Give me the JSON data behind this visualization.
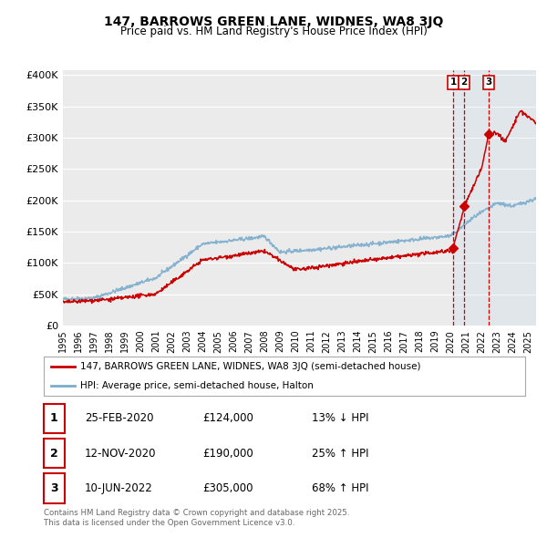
{
  "title": "147, BARROWS GREEN LANE, WIDNES, WA8 3JQ",
  "subtitle": "Price paid vs. HM Land Registry's House Price Index (HPI)",
  "legend_label_red": "147, BARROWS GREEN LANE, WIDNES, WA8 3JQ (semi-detached house)",
  "legend_label_blue": "HPI: Average price, semi-detached house, Halton",
  "ylim": [
    0,
    400000
  ],
  "yticks": [
    0,
    50000,
    100000,
    150000,
    200000,
    250000,
    300000,
    350000,
    400000
  ],
  "ytick_labels": [
    "£0",
    "£50K",
    "£100K",
    "£150K",
    "£200K",
    "£250K",
    "£300K",
    "£350K",
    "£400K"
  ],
  "background_color": "#ffffff",
  "plot_bg_color": "#ebebeb",
  "grid_color": "#ffffff",
  "red_color": "#cc0000",
  "blue_color": "#7aadcc",
  "transactions": [
    {
      "num": 1,
      "date": "25-FEB-2020",
      "price": 124000,
      "pct": "13%",
      "dir": "↓",
      "x": 2020.15
    },
    {
      "num": 2,
      "date": "12-NOV-2020",
      "price": 190000,
      "pct": "25%",
      "dir": "↑",
      "x": 2020.87
    },
    {
      "num": 3,
      "date": "10-JUN-2022",
      "price": 305000,
      "pct": "68%",
      "dir": "↑",
      "x": 2022.45
    }
  ],
  "footer": "Contains HM Land Registry data © Crown copyright and database right 2025.\nThis data is licensed under the Open Government Licence v3.0.",
  "xlim_start": 1995,
  "xlim_end": 2025.5,
  "dashed_line1_x": 2020.15,
  "dashed_line2_x": 2020.87,
  "dashed_line3_x": 2022.45
}
